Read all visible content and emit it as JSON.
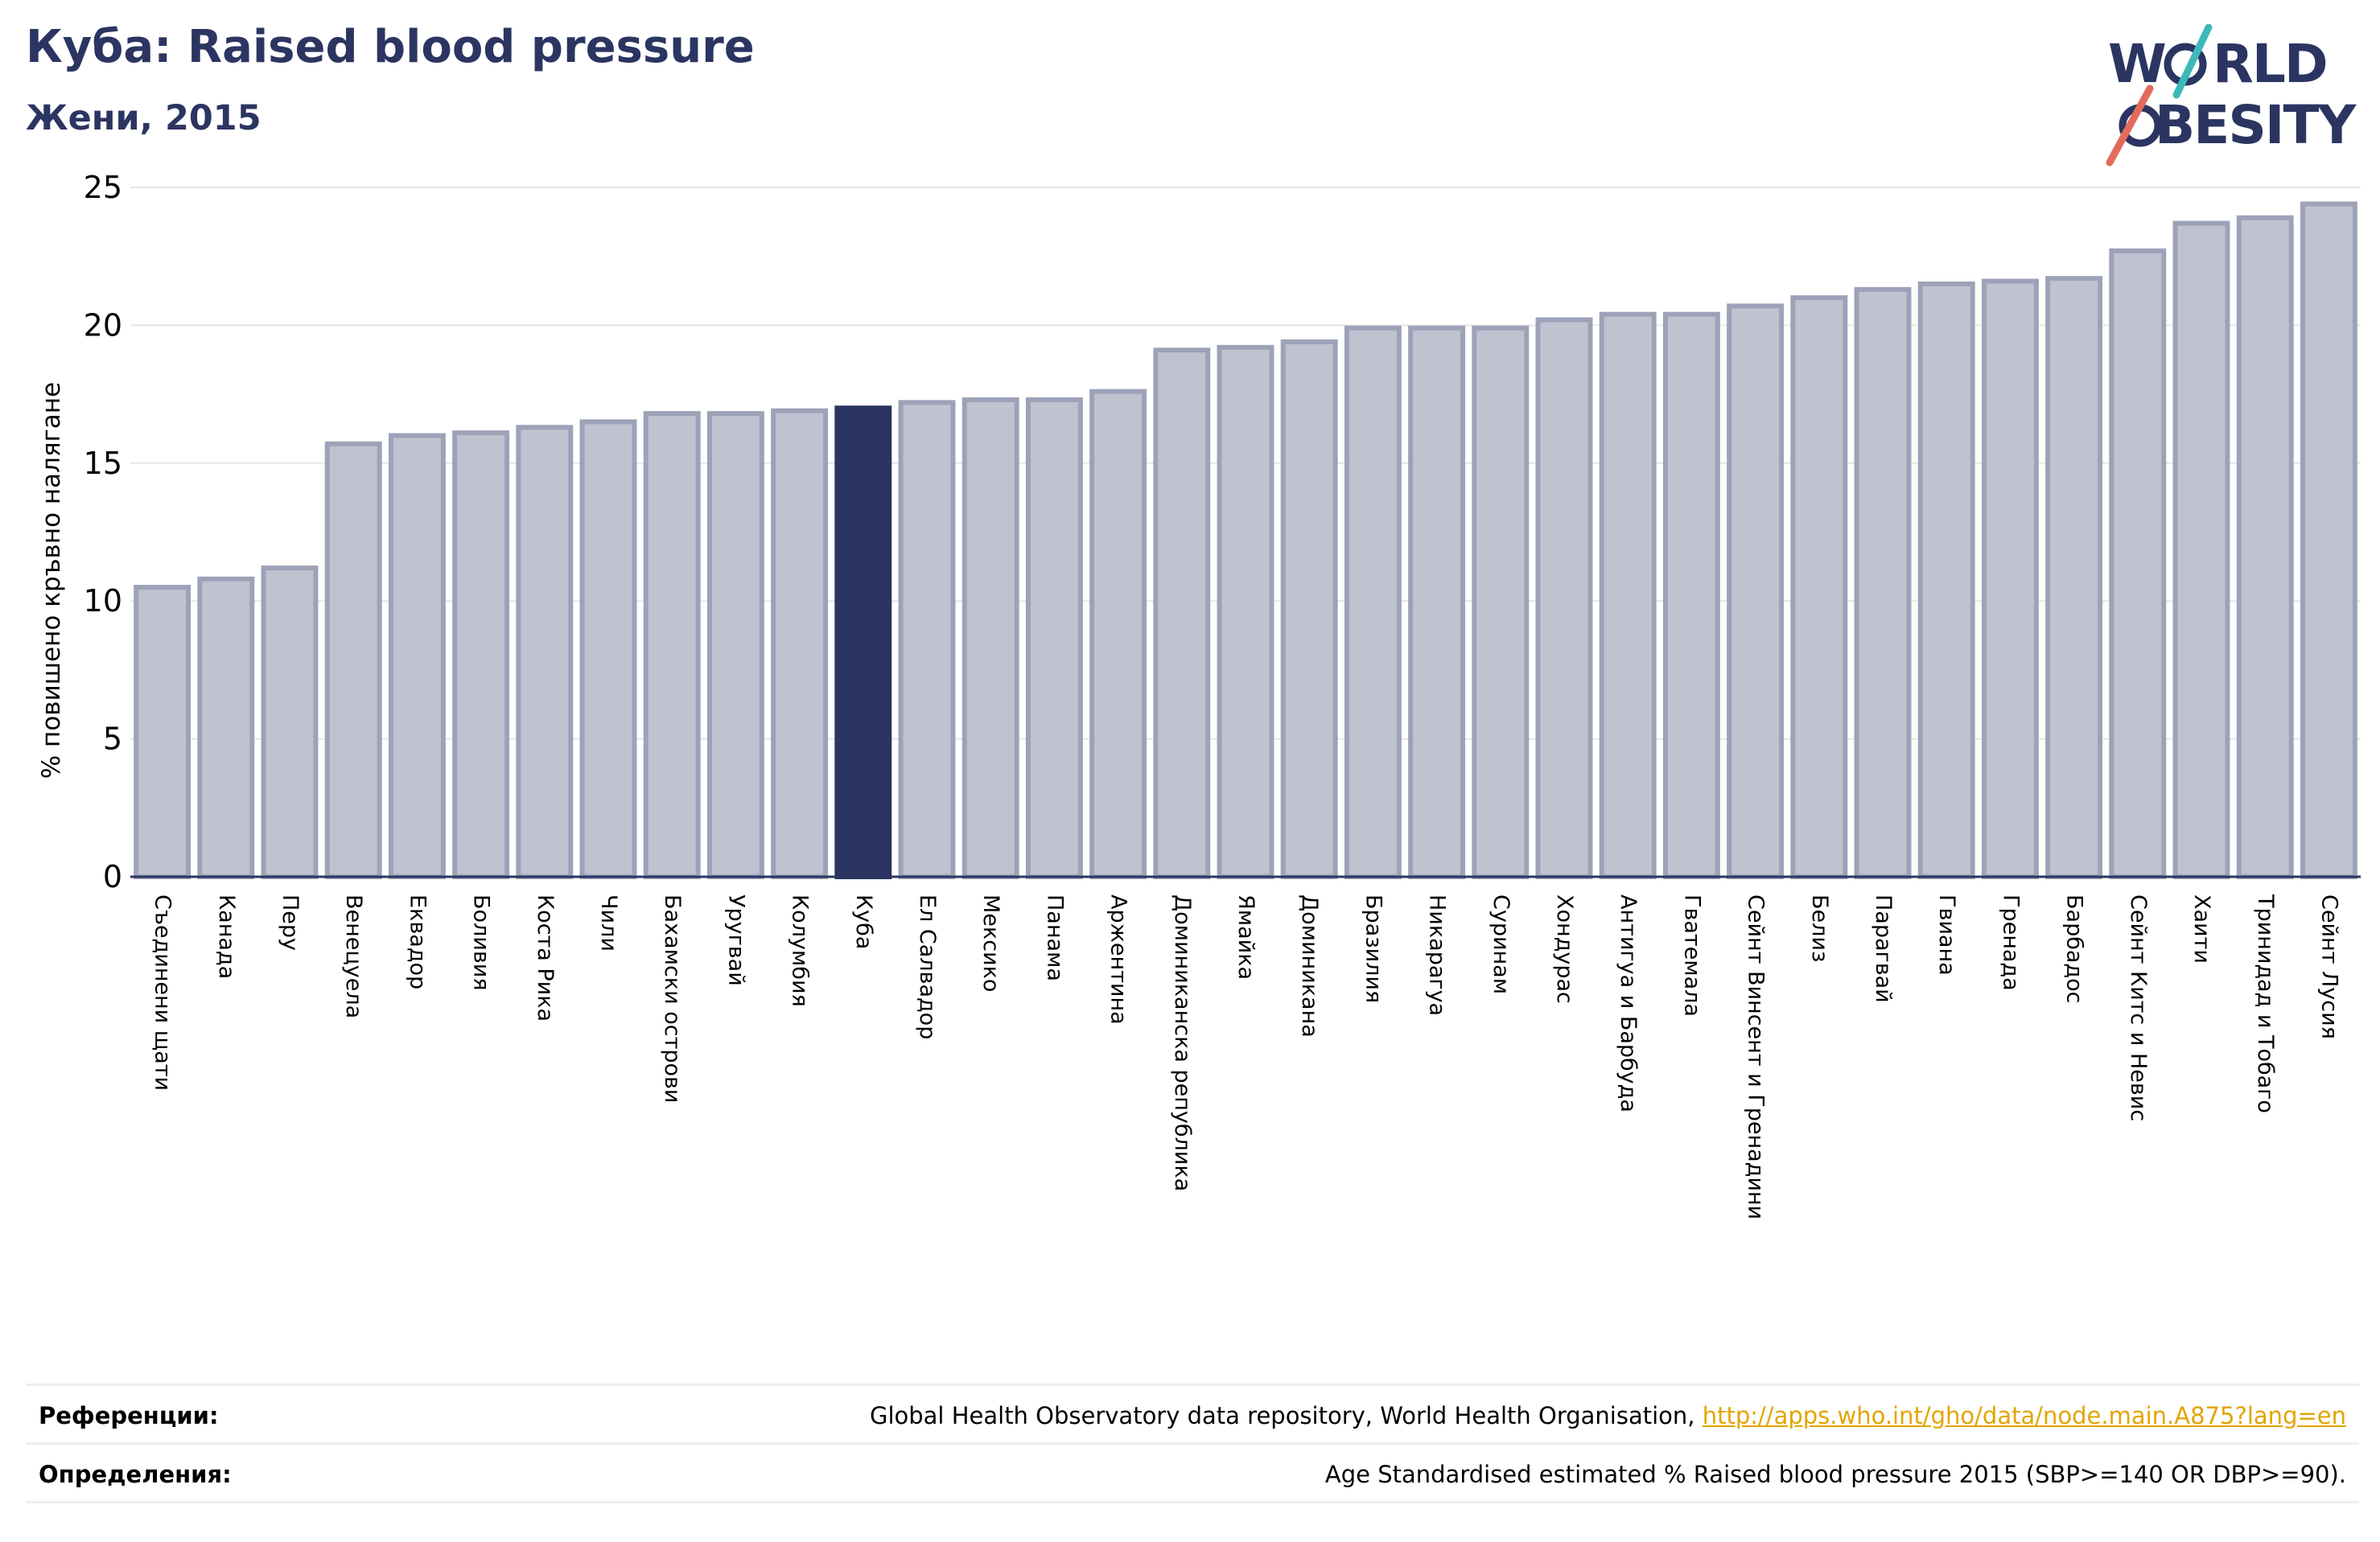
{
  "header": {
    "title": "Куба: Raised blood pressure",
    "subtitle": "Жени, 2015"
  },
  "logo": {
    "line1": "WORLD",
    "line2": "OBESITY"
  },
  "colors": {
    "title": "#2b3561",
    "bar_default": "#bfc2cf",
    "bar_default_edge": "#9da2b8",
    "bar_highlight": "#2b3561",
    "grid": "#e6e6e6",
    "link": "#e2a500",
    "logo_teal": "#3cb9b8",
    "logo_coral": "#e36b5c"
  },
  "chart_data": {
    "type": "bar",
    "title": "",
    "xlabel": "",
    "ylabel": "% повишено кръвно налягане",
    "ylim": [
      0,
      25
    ],
    "yticks": [
      0,
      5,
      10,
      15,
      20,
      25
    ],
    "grid": true,
    "highlight": "Куба",
    "categories": [
      "Съединени щати",
      "Канада",
      "Перу",
      "Венецуела",
      "Еквадор",
      "Боливия",
      "Коста Рика",
      "Чили",
      "Бахамски острови",
      "Уругвай",
      "Колумбия",
      "Куба",
      "Ел Салвадор",
      "Мексико",
      "Панама",
      "Аржентина",
      "Доминиканска република",
      "Ямайка",
      "Доминикана",
      "Бразилия",
      "Никарагуа",
      "Суринам",
      "Хондурас",
      "Антигуа и Барбуда",
      "Гватемала",
      "Сейнт Винсент и Гренадини",
      "Белиз",
      "Парагвай",
      "Гвиана",
      "Гренада",
      "Барбадос",
      "Сейнт Китс и Невис",
      "Хаити",
      "Тринидад и Тобаго",
      "Сейнт Лусия"
    ],
    "values": [
      10.5,
      10.8,
      11.2,
      15.7,
      16.0,
      16.1,
      16.3,
      16.5,
      16.8,
      16.8,
      16.9,
      17.0,
      17.2,
      17.3,
      17.3,
      17.6,
      19.1,
      19.2,
      19.4,
      19.9,
      19.9,
      19.9,
      20.2,
      20.4,
      20.4,
      20.7,
      21.0,
      21.3,
      21.5,
      21.6,
      21.7,
      22.7,
      23.7,
      23.9,
      24.4
    ]
  },
  "footer": {
    "references_label": "Референции:",
    "references_text": "Global Health Observatory data repository, World Health Organisation, ",
    "references_link": "http://apps.who.int/gho/data/node.main.A875?lang=en",
    "definitions_label": "Определения:",
    "definitions_text": "Age Standardised estimated % Raised blood pressure 2015 (SBP>=140 OR DBP>=90)."
  }
}
